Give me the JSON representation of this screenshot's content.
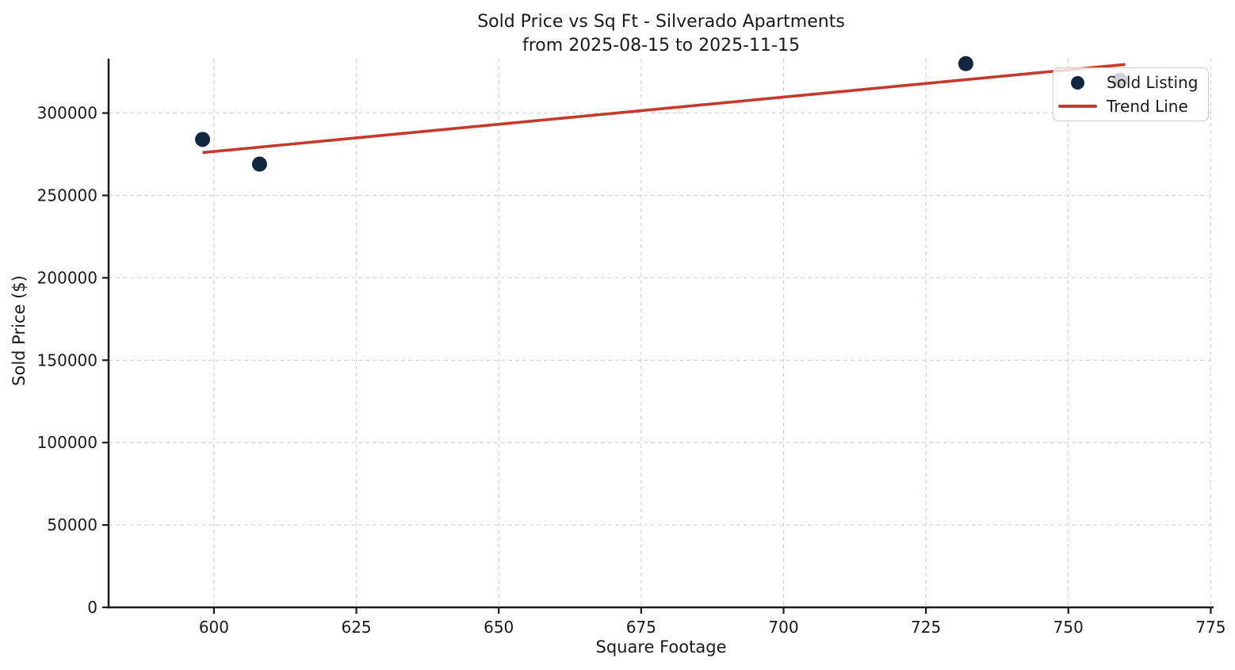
{
  "chart_data": {
    "type": "scatter",
    "title_line1": "Sold Price vs Sq Ft - Silverado Apartments",
    "title_line2": "from 2025-08-15 to 2025-11-15",
    "xlabel": "Square Footage",
    "ylabel": "Sold Price ($)",
    "xlim": [
      581.5,
      775.5
    ],
    "ylim": [
      0,
      333000
    ],
    "xticks": [
      600,
      625,
      650,
      675,
      700,
      725,
      750,
      775
    ],
    "yticks": [
      0,
      50000,
      100000,
      150000,
      200000,
      250000,
      300000
    ],
    "grid": "dashed-lightgray",
    "legend_location": "upper right",
    "series": [
      {
        "name": "Sold Listing",
        "type": "scatter",
        "color": "#12263f",
        "points": [
          {
            "sqft": 598,
            "price": 284000
          },
          {
            "sqft": 608,
            "price": 269000
          },
          {
            "sqft": 732,
            "price": 330000
          },
          {
            "sqft": 759,
            "price": 320000
          }
        ]
      },
      {
        "name": "Trend Line",
        "type": "line",
        "color": "#c43a2b",
        "points": [
          {
            "sqft": 598,
            "price": 276000
          },
          {
            "sqft": 760,
            "price": 329500
          }
        ]
      }
    ],
    "colors": {
      "grid": "#d7d7d7",
      "axis": "#1a1a1a",
      "text": "#1a1a1a",
      "marker": "#12263f",
      "trend": "#c43a2b"
    }
  }
}
